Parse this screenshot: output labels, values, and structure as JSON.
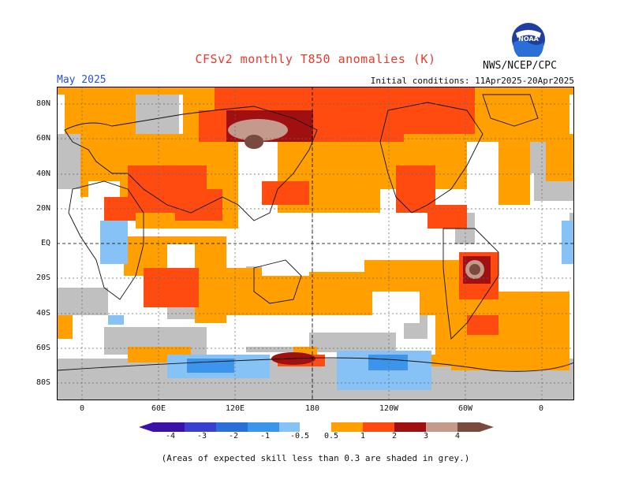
{
  "header": {
    "title": "CFSv2 monthly T850 anomalies (K)",
    "org": "NWS/NCEP/CPC",
    "period": "May 2025",
    "initial_conditions": "Initial conditions: 11Apr2025-20Apr2025"
  },
  "logo": {
    "icon": "noaa-logo-icon",
    "text": "NOAA"
  },
  "axes": {
    "lat_labels": [
      "80N",
      "60N",
      "40N",
      "20N",
      "EQ",
      "20S",
      "40S",
      "60S",
      "80S"
    ],
    "lon_labels": [
      "0",
      "60E",
      "120E",
      "180",
      "120W",
      "60W",
      "0"
    ]
  },
  "colorbar": {
    "labels": [
      "-4",
      "-3",
      "-2",
      "-1",
      "-0.5",
      "0.5",
      "1",
      "2",
      "3",
      "4"
    ],
    "colors": [
      "#3a12a8",
      "#3b3fd0",
      "#2a6ed8",
      "#3c95ea",
      "#86c2f5",
      "#ffffff",
      "#ff9f00",
      "#ff4a10",
      "#d42010",
      "#a01010",
      "#c49a8c",
      "#7a4a3e"
    ]
  },
  "colors": {
    "grey_low_skill": "#c0c0c0",
    "orange": "#ff9f00",
    "red": "#ff4a10",
    "darkred": "#a01010",
    "brown": "#7a4a3e",
    "lightblue": "#86c2f5",
    "blue": "#3c95ea"
  },
  "footnote": "(Areas of expected skill less than 0.3 are shaded in grey.)"
}
